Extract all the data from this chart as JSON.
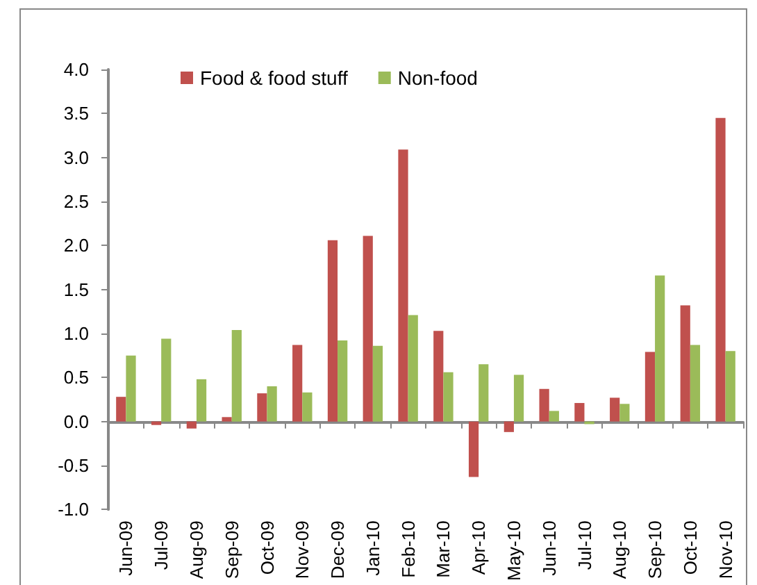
{
  "chart_data": {
    "type": "bar",
    "categories": [
      "Jun-09",
      "Jul-09",
      "Aug-09",
      "Sep-09",
      "Oct-09",
      "Nov-09",
      "Dec-09",
      "Jan-10",
      "Feb-10",
      "Mar-10",
      "Apr-10",
      "May-10",
      "Jun-10",
      "Jul-10",
      "Aug-10",
      "Sep-10",
      "Oct-10",
      "Nov-10"
    ],
    "series": [
      {
        "name": "Food & food stuff",
        "color": "#c0504d",
        "values": [
          0.28,
          -0.04,
          -0.08,
          0.05,
          0.32,
          0.87,
          2.06,
          2.11,
          3.09,
          1.03,
          -0.63,
          -0.12,
          0.37,
          0.21,
          0.27,
          0.79,
          1.32,
          3.45
        ]
      },
      {
        "name": "Non-food",
        "color": "#9bbb59",
        "values": [
          0.75,
          0.94,
          0.48,
          1.04,
          0.4,
          0.33,
          0.92,
          0.86,
          1.21,
          0.56,
          0.65,
          0.53,
          0.12,
          -0.03,
          0.2,
          1.66,
          0.87,
          0.8
        ]
      }
    ],
    "ylim": [
      -1,
      4
    ],
    "yticks": [
      {
        "value": -1,
        "label": "-1.0"
      },
      {
        "value": -0.5,
        "label": "-0.5"
      },
      {
        "value": 0,
        "label": "0.0"
      },
      {
        "value": 0.5,
        "label": "0.5"
      },
      {
        "value": 1,
        "label": "1.0"
      },
      {
        "value": 1.5,
        "label": "1.5"
      },
      {
        "value": 2,
        "label": "2.0"
      },
      {
        "value": 2.5,
        "label": "2.5"
      },
      {
        "value": 3,
        "label": "3.0"
      },
      {
        "value": 3.5,
        "label": "3.5"
      },
      {
        "value": 4,
        "label": "4.0"
      }
    ],
    "legend": "top"
  }
}
